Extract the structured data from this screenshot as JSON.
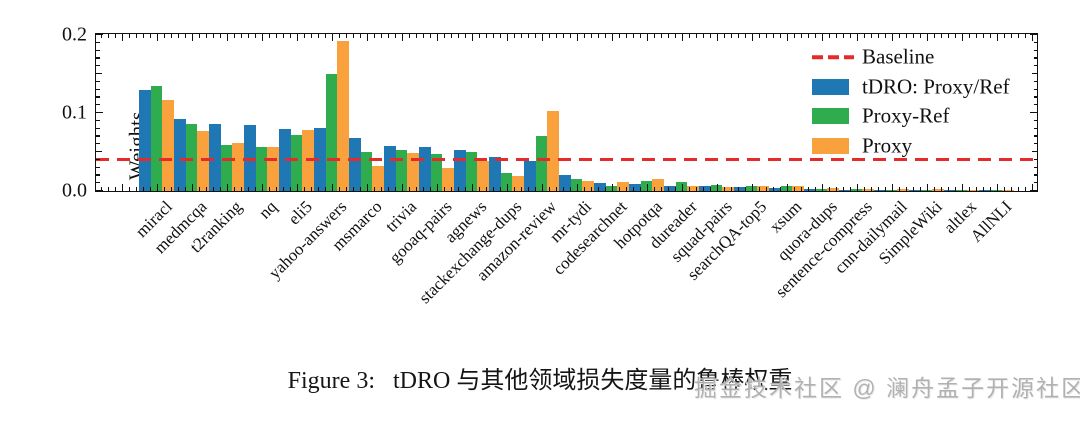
{
  "figure": {
    "caption": "Figure 3:   tDRO 与其他领域损失度量的鲁棒权重",
    "watermark": "掘金技术社区 @ 澜舟孟子开源社区"
  },
  "chart_data": {
    "type": "bar",
    "title": "",
    "xlabel": "",
    "ylabel": "Weights",
    "ylim": [
      0,
      0.2
    ],
    "yticks": [
      0.0,
      0.1,
      0.2
    ],
    "grid": false,
    "legend_position": "upper right",
    "baseline": {
      "label": "Baseline",
      "value": 0.04,
      "style": "dashed",
      "color": "#e32b2b"
    },
    "categories": [
      "miracl",
      "medmcqa",
      "t2ranking",
      "nq",
      "eli5",
      "yahoo-answers",
      "msmarco",
      "trivia",
      "gooaq-pairs",
      "agnews",
      "stackexchange-dups",
      "amazon-review",
      "mr-tydi",
      "codesearchnet",
      "hotpotqa",
      "dureader",
      "squad-pairs",
      "searchQA-top5",
      "xsum",
      "quora-dups",
      "sentence-compress",
      "cnn-dailymail",
      "SimpleWiki",
      "altlex",
      "AllNLI"
    ],
    "series": [
      {
        "name": "tDRO: Proxy/Ref",
        "color": "#1f77b4",
        "values": [
          0.13,
          0.092,
          0.086,
          0.084,
          0.08,
          0.081,
          0.068,
          0.058,
          0.057,
          0.053,
          0.043,
          0.038,
          0.021,
          0.01,
          0.009,
          0.006,
          0.006,
          0.005,
          0.004,
          0.002,
          0.001,
          0.001,
          0.001,
          0.001,
          0.001
        ]
      },
      {
        "name": "Proxy-Ref",
        "color": "#2fad4e",
        "values": [
          0.135,
          0.086,
          0.059,
          0.057,
          0.072,
          0.15,
          0.05,
          0.052,
          0.047,
          0.05,
          0.023,
          0.071,
          0.016,
          0.007,
          0.013,
          0.011,
          0.008,
          0.007,
          0.006,
          0.002,
          0.002,
          0.001,
          0.001,
          0.001,
          0.001
        ]
      },
      {
        "name": "Proxy",
        "color": "#f9a13c",
        "values": [
          0.117,
          0.077,
          0.061,
          0.057,
          0.078,
          0.192,
          0.032,
          0.049,
          0.029,
          0.038,
          0.019,
          0.103,
          0.013,
          0.012,
          0.015,
          0.007,
          0.005,
          0.006,
          0.006,
          0.004,
          0.002,
          0.002,
          0.002,
          0.001,
          0.001
        ]
      }
    ]
  },
  "colors": {
    "blue": "#1f77b4",
    "green": "#2fad4e",
    "orange": "#f9a13c",
    "baseline_red": "#e32b2b",
    "axis": "#111111",
    "watermark_gray": "#b1b1b1"
  }
}
